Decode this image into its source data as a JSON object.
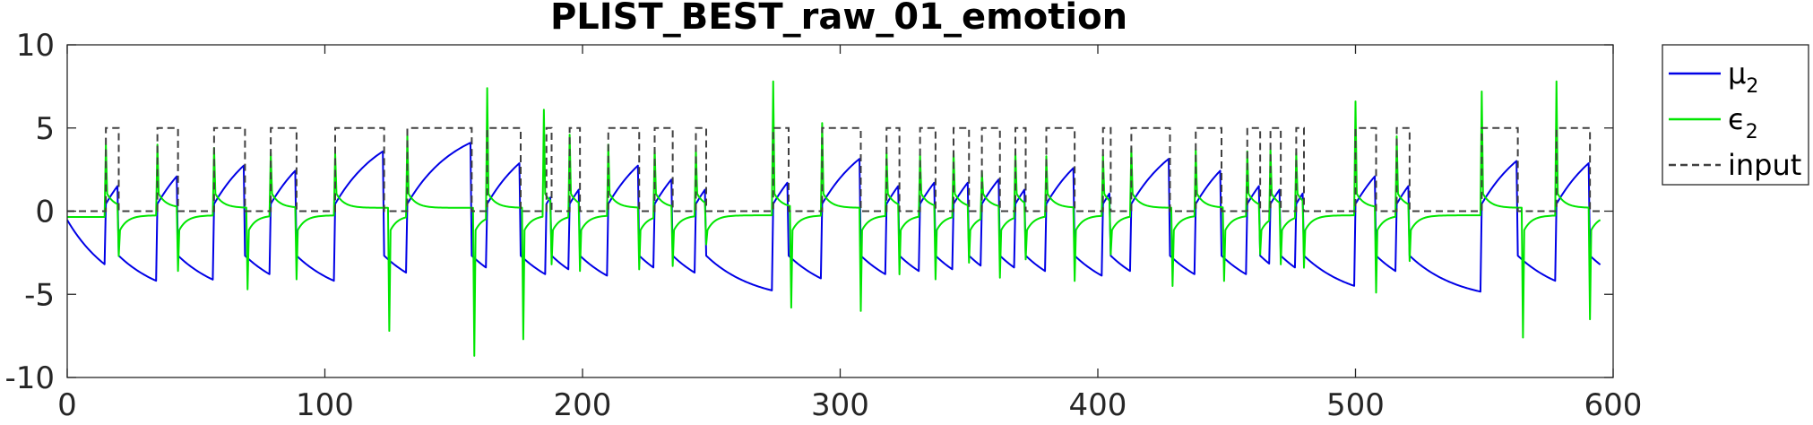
{
  "chart_data": {
    "type": "line",
    "title": "PLIST_BEST_raw_01_emotion",
    "xlabel": "",
    "ylabel": "",
    "xlim": [
      0,
      600
    ],
    "ylim": [
      -10,
      10
    ],
    "x_ticks": [
      0,
      100,
      200,
      300,
      400,
      500,
      600
    ],
    "y_ticks": [
      10,
      5,
      0,
      -5,
      -10
    ],
    "grid": false,
    "legend_position": "top-right-outside",
    "input_high": 5,
    "mu_amplitude": 5.5,
    "series": [
      {
        "name_main": "μ",
        "name_sub": "2",
        "color": "#0000e6",
        "style": "solid"
      },
      {
        "name_main": "ϵ",
        "name_sub": "2",
        "color": "#00e600",
        "style": "solid"
      },
      {
        "name_main": "input",
        "name_sub": "",
        "color": "#404040",
        "style": "dashed"
      }
    ],
    "input_pulses": [
      [
        15,
        20
      ],
      [
        35,
        43
      ],
      [
        57,
        69
      ],
      [
        79,
        89
      ],
      [
        104,
        123
      ],
      [
        132,
        157
      ],
      [
        163,
        176
      ],
      [
        186,
        188
      ],
      [
        195,
        199
      ],
      [
        210,
        222
      ],
      [
        228,
        235
      ],
      [
        244,
        248
      ],
      [
        274,
        280
      ],
      [
        293,
        308
      ],
      [
        318,
        323
      ],
      [
        331,
        337
      ],
      [
        344,
        350
      ],
      [
        355,
        362
      ],
      [
        368,
        372
      ],
      [
        380,
        391
      ],
      [
        402,
        405
      ],
      [
        413,
        428
      ],
      [
        438,
        448
      ],
      [
        458,
        463
      ],
      [
        467,
        471
      ],
      [
        477,
        480
      ],
      [
        500,
        508
      ],
      [
        516,
        521
      ],
      [
        549,
        563
      ],
      [
        578,
        591
      ]
    ],
    "epsilon_spikes": [
      {
        "x": 15,
        "v": 4.0
      },
      {
        "x": 20,
        "v": -2.7
      },
      {
        "x": 35,
        "v": 4.0
      },
      {
        "x": 43,
        "v": -3.6
      },
      {
        "x": 57,
        "v": 3.8
      },
      {
        "x": 70,
        "v": -4.7
      },
      {
        "x": 79,
        "v": 3.5
      },
      {
        "x": 89,
        "v": -4.1
      },
      {
        "x": 104,
        "v": 3.5
      },
      {
        "x": 125,
        "v": -7.2
      },
      {
        "x": 132,
        "v": 4.6
      },
      {
        "x": 158,
        "v": -8.7
      },
      {
        "x": 163,
        "v": 7.4
      },
      {
        "x": 177,
        "v": -7.7
      },
      {
        "x": 185,
        "v": 6.1
      },
      {
        "x": 188,
        "v": -3.2
      },
      {
        "x": 195,
        "v": 4.6
      },
      {
        "x": 199,
        "v": -3.6
      },
      {
        "x": 210,
        "v": 4.0
      },
      {
        "x": 222,
        "v": -3.5
      },
      {
        "x": 228,
        "v": 3.8
      },
      {
        "x": 235,
        "v": -3.3
      },
      {
        "x": 244,
        "v": 3.7
      },
      {
        "x": 248,
        "v": -2.0
      },
      {
        "x": 274,
        "v": 7.8
      },
      {
        "x": 281,
        "v": -5.8
      },
      {
        "x": 293,
        "v": 5.3
      },
      {
        "x": 308,
        "v": -6.0
      },
      {
        "x": 318,
        "v": 3.5
      },
      {
        "x": 323,
        "v": -3.8
      },
      {
        "x": 331,
        "v": 3.4
      },
      {
        "x": 337,
        "v": -4.1
      },
      {
        "x": 344,
        "v": 3.6
      },
      {
        "x": 350,
        "v": -3.1
      },
      {
        "x": 355,
        "v": 2.4
      },
      {
        "x": 362,
        "v": -4.0
      },
      {
        "x": 368,
        "v": 3.6
      },
      {
        "x": 372,
        "v": -2.9
      },
      {
        "x": 380,
        "v": 3.3
      },
      {
        "x": 391,
        "v": -4.2
      },
      {
        "x": 402,
        "v": 3.4
      },
      {
        "x": 405,
        "v": -2.6
      },
      {
        "x": 413,
        "v": 3.8
      },
      {
        "x": 429,
        "v": -4.5
      },
      {
        "x": 438,
        "v": 3.7
      },
      {
        "x": 449,
        "v": -4.2
      },
      {
        "x": 458,
        "v": 3.6
      },
      {
        "x": 463,
        "v": -2.6
      },
      {
        "x": 467,
        "v": 3.7
      },
      {
        "x": 471,
        "v": -3.2
      },
      {
        "x": 477,
        "v": 3.5
      },
      {
        "x": 480,
        "v": -3.4
      },
      {
        "x": 500,
        "v": 6.6
      },
      {
        "x": 508,
        "v": -4.9
      },
      {
        "x": 516,
        "v": 4.5
      },
      {
        "x": 521,
        "v": -3.0
      },
      {
        "x": 549,
        "v": 7.2
      },
      {
        "x": 565,
        "v": -7.6
      },
      {
        "x": 578,
        "v": 7.8
      },
      {
        "x": 591,
        "v": -6.5
      }
    ]
  }
}
